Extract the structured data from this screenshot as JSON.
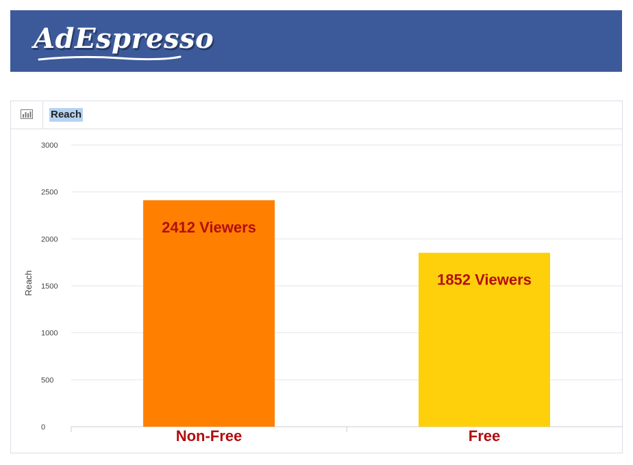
{
  "header": {
    "logo_text": "AdEspresso",
    "background": "#3c5a9a"
  },
  "panel": {
    "title": "Reach",
    "icon": "bar-chart-icon"
  },
  "chart_data": {
    "type": "bar",
    "categories": [
      "Non-Free",
      "Free"
    ],
    "values": [
      2412,
      1852
    ],
    "data_labels": [
      "2412 Viewers",
      "1852 Viewers"
    ],
    "colors": [
      "#ff8000",
      "#fdd00b"
    ],
    "ylabel": "Reach",
    "ylim": [
      0,
      3000
    ],
    "yticks": [
      0,
      500,
      1000,
      1500,
      2000,
      2500,
      3000
    ],
    "grid": true
  }
}
